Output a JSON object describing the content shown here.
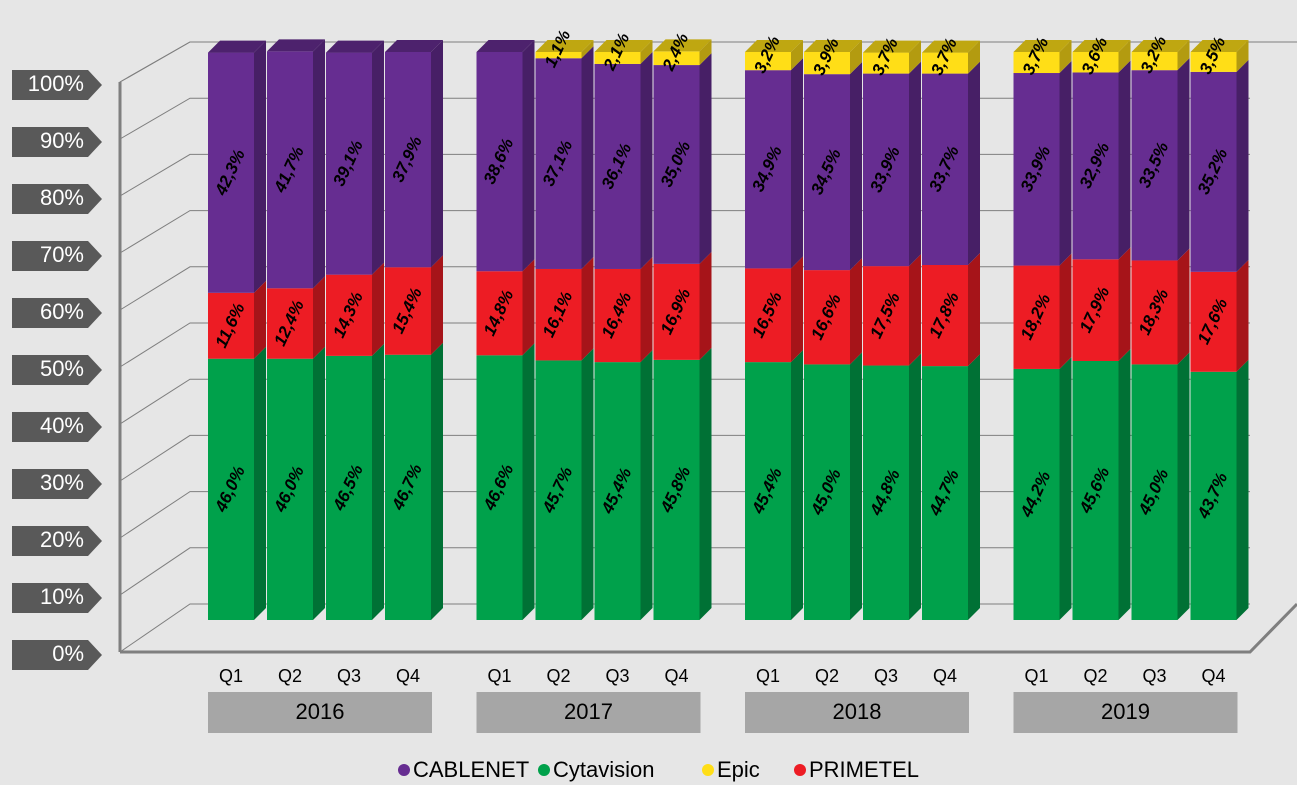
{
  "chart_data": {
    "type": "bar3d_stacked_percent",
    "categories": [
      "Q1",
      "Q2",
      "Q3",
      "Q4",
      "Q1",
      "Q2",
      "Q3",
      "Q4",
      "Q1",
      "Q2",
      "Q3",
      "Q4",
      "Q1",
      "Q2",
      "Q3",
      "Q4"
    ],
    "groups": [
      "2016",
      "2017",
      "2018",
      "2019"
    ],
    "series": [
      {
        "name": "CABLENET",
        "color": "#662d91",
        "values": [
          42.3,
          41.7,
          39.1,
          37.9,
          38.6,
          37.1,
          36.1,
          35.0,
          34.9,
          34.5,
          33.9,
          33.7,
          33.9,
          32.9,
          33.5,
          35.2
        ],
        "value_labels": [
          "42,3%",
          "41,7%",
          "39,1%",
          "37,9%",
          "38,6%",
          "37,1%",
          "36,1%",
          "35,0%",
          "34,9%",
          "34,5%",
          "33,9%",
          "33,7%",
          "33,9%",
          "32,9%",
          "33,5%",
          "35,2%"
        ]
      },
      {
        "name": "Cytavision",
        "color": "#00a14b",
        "values": [
          46.0,
          46.0,
          46.5,
          46.7,
          46.6,
          45.7,
          45.4,
          45.8,
          45.4,
          45.0,
          44.8,
          44.7,
          44.2,
          45.6,
          45.0,
          43.7
        ],
        "value_labels": [
          "46,0%",
          "46,0%",
          "46,5%",
          "46,7%",
          "46,6%",
          "45,7%",
          "45,4%",
          "45,8%",
          "45,4%",
          "45,0%",
          "44,8%",
          "44,7%",
          "44,2%",
          "45,6%",
          "45,0%",
          "43,7%"
        ]
      },
      {
        "name": "Epic",
        "color": "#ffde17",
        "values": [
          null,
          null,
          null,
          null,
          null,
          1.1,
          2.1,
          2.4,
          3.2,
          3.9,
          3.7,
          3.7,
          3.7,
          3.6,
          3.2,
          3.5
        ],
        "value_labels": [
          null,
          null,
          null,
          null,
          null,
          "1,1%",
          "2,1%",
          "2,4%",
          "3,2%",
          "3,9%",
          "3,7%",
          "3,7%",
          "3,7%",
          "3,6%",
          "3,2%",
          "3,5%"
        ]
      },
      {
        "name": "PRIMETEL",
        "color": "#ed1c24",
        "values": [
          11.6,
          12.4,
          14.3,
          15.4,
          14.8,
          16.1,
          16.4,
          16.9,
          16.5,
          16.6,
          17.5,
          17.8,
          18.2,
          17.9,
          18.3,
          17.6
        ],
        "value_labels": [
          "11,6%",
          "12,4%",
          "14,3%",
          "15,4%",
          "14,8%",
          "16,1%",
          "16,4%",
          "16,9%",
          "16,5%",
          "16,6%",
          "17,5%",
          "17,8%",
          "18,2%",
          "17,9%",
          "18,3%",
          "17,6%"
        ]
      }
    ],
    "ylim": [
      0,
      100
    ],
    "yticks": [
      {
        "value": 0,
        "label": "0%"
      },
      {
        "value": 10,
        "label": "10%"
      },
      {
        "value": 20,
        "label": "20%"
      },
      {
        "value": 30,
        "label": "30%"
      },
      {
        "value": 40,
        "label": "40%"
      },
      {
        "value": 50,
        "label": "50%"
      },
      {
        "value": 60,
        "label": "60%"
      },
      {
        "value": 70,
        "label": "70%"
      },
      {
        "value": 80,
        "label": "80%"
      },
      {
        "value": 90,
        "label": "90%"
      },
      {
        "value": 100,
        "label": "100%"
      }
    ],
    "grid": true,
    "legend": "bottom"
  }
}
